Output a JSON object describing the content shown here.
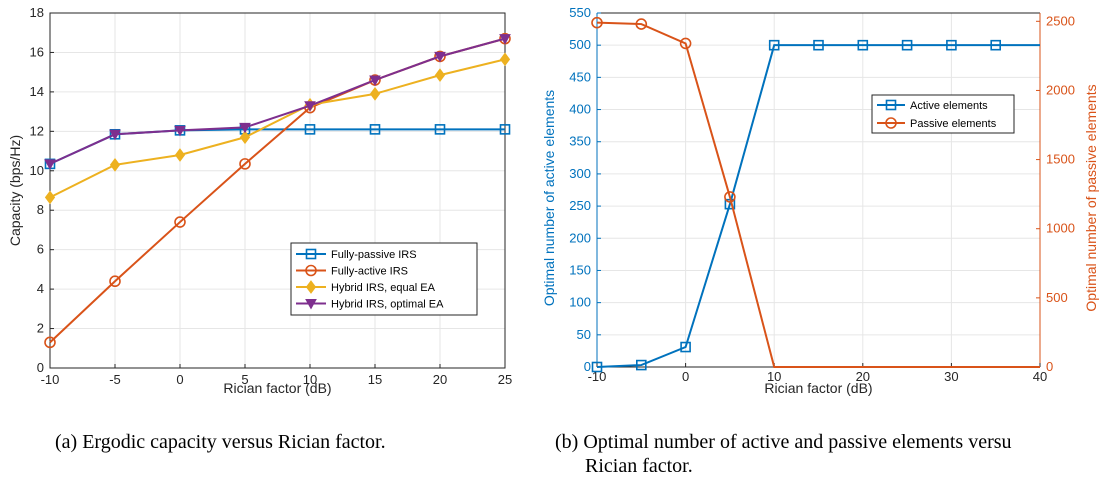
{
  "captions": {
    "a": "(a) Ergodic capacity versus Rician factor.",
    "b_line1": "(b) Optimal number of active and passive elements versu",
    "b_line2": "Rician factor."
  },
  "chart_data": [
    {
      "type": "line",
      "xlabel": "Rician factor (dB)",
      "ylabel": "Capacity (bps/Hz)",
      "xlim": [
        -10,
        25
      ],
      "ylim": [
        0,
        18
      ],
      "xticks": [
        -10,
        -5,
        0,
        5,
        10,
        15,
        20,
        25
      ],
      "yticks": [
        0,
        2,
        4,
        6,
        8,
        10,
        12,
        14,
        16,
        18
      ],
      "grid": true,
      "legend_position": "bottom-right",
      "x": [
        -10,
        -5,
        0,
        5,
        10,
        15,
        20,
        25
      ],
      "series": [
        {
          "name": "Fully-passive IRS",
          "color": "#0072BD",
          "marker": "square",
          "values": [
            10.35,
            11.85,
            12.05,
            12.1,
            12.1,
            12.1,
            12.1,
            12.1
          ]
        },
        {
          "name": "Fully-active IRS",
          "color": "#D95319",
          "marker": "circle",
          "values": [
            1.3,
            4.4,
            7.4,
            10.35,
            13.2,
            14.6,
            15.8,
            16.7
          ]
        },
        {
          "name": "Hybrid IRS, equal EA",
          "color": "#EDB120",
          "marker": "diamond",
          "values": [
            8.65,
            10.3,
            10.8,
            11.7,
            13.35,
            13.9,
            14.85,
            15.65
          ]
        },
        {
          "name": "Hybrid IRS, optimal EA",
          "color": "#7E2F8E",
          "marker": "triangle-down",
          "values": [
            10.35,
            11.85,
            12.05,
            12.2,
            13.3,
            14.6,
            15.8,
            16.7
          ]
        }
      ]
    },
    {
      "type": "line",
      "xlabel": "Rician factor (dB)",
      "ylabel_left": "Optimal number of active elements",
      "ylabel_right": "Optimal number of passive elements",
      "xlim": [
        -10,
        40
      ],
      "ylim_left": [
        0,
        550
      ],
      "ylim_right": [
        0,
        2560
      ],
      "xticks": [
        -10,
        0,
        10,
        20,
        30,
        40
      ],
      "yticks_left": [
        0,
        50,
        100,
        150,
        200,
        250,
        300,
        350,
        400,
        450,
        500,
        550
      ],
      "yticks_right": [
        0,
        500,
        1000,
        1500,
        2000,
        2500
      ],
      "grid": true,
      "legend_position": "upper-right",
      "series": [
        {
          "name": "Active elements",
          "color": "#0072BD",
          "marker": "square",
          "axis": "left",
          "x": [
            -10,
            -5,
            0,
            5,
            10,
            15,
            20,
            25,
            30,
            35,
            40
          ],
          "values": [
            0,
            3,
            31,
            253,
            500,
            500,
            500,
            500,
            500,
            500,
            500
          ],
          "marker_x": [
            -10,
            -5,
            0,
            5,
            10,
            15,
            20,
            25,
            30,
            35
          ]
        },
        {
          "name": "Passive elements",
          "color": "#D95319",
          "marker": "circle",
          "axis": "right",
          "x": [
            -10,
            -5,
            0,
            5,
            10,
            15,
            20,
            25,
            30,
            35,
            40
          ],
          "values": [
            2490,
            2480,
            2340,
            1230,
            0,
            0,
            0,
            0,
            0,
            0,
            0
          ],
          "marker_x": [
            -10,
            -5,
            0,
            5
          ]
        }
      ]
    }
  ]
}
